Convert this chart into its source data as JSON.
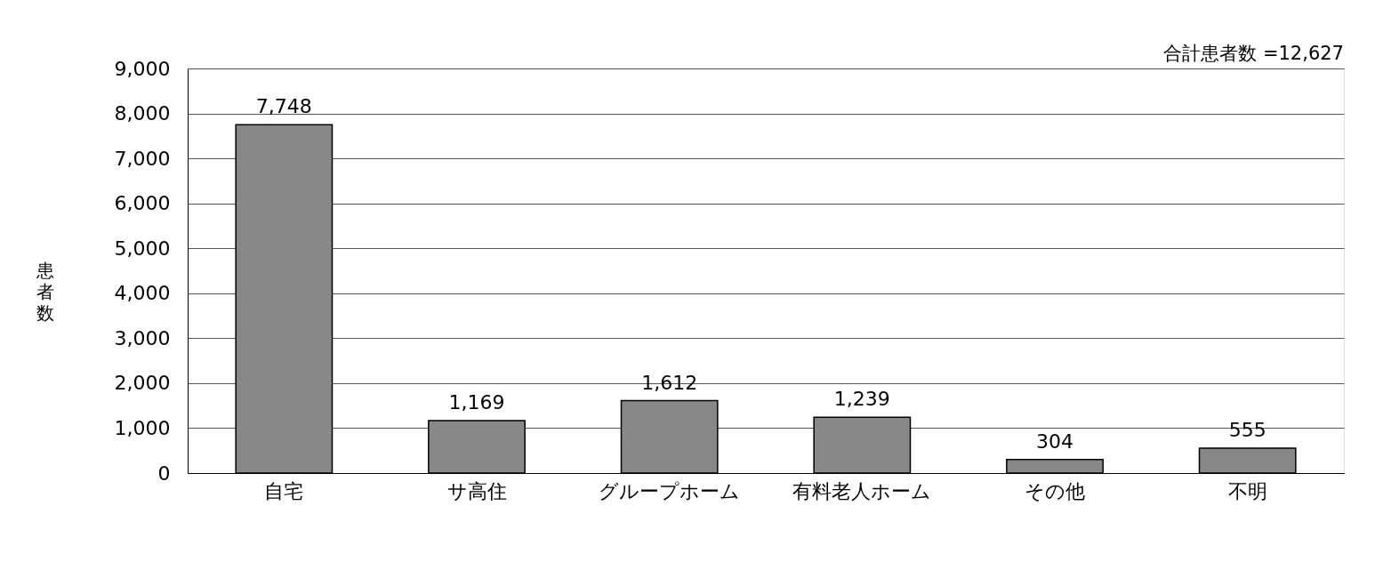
{
  "chart_data": {
    "type": "bar",
    "ylabel": "患者数",
    "categories": [
      "自宅",
      "サ高住",
      "グループホーム",
      "有料老人ホーム",
      "その他",
      "不明"
    ],
    "values": [
      7748,
      1169,
      1612,
      1239,
      304,
      555
    ],
    "value_labels": [
      "7,748",
      "1,169",
      "1,612",
      "1,239",
      "304",
      "555"
    ],
    "color": "#888888",
    "ylim": [
      0,
      9000
    ],
    "yticks": [
      0,
      {
        "value": 1000,
        "label": "1,000"
      },
      {
        "value": 2000,
        "label": "2,000"
      },
      {
        "value": 3000,
        "label": "3,000"
      },
      {
        "value": 4000,
        "label": "4,000"
      },
      {
        "value": 5000,
        "label": "5,000"
      },
      {
        "value": 6000,
        "label": "6,000"
      },
      {
        "value": 7000,
        "label": "7,000"
      },
      {
        "value": 8000,
        "label": "8,000"
      },
      {
        "value": 9000,
        "label": "9,000"
      }
    ],
    "grid": "y",
    "annotations": [
      "合計患者数 =12,627"
    ]
  }
}
